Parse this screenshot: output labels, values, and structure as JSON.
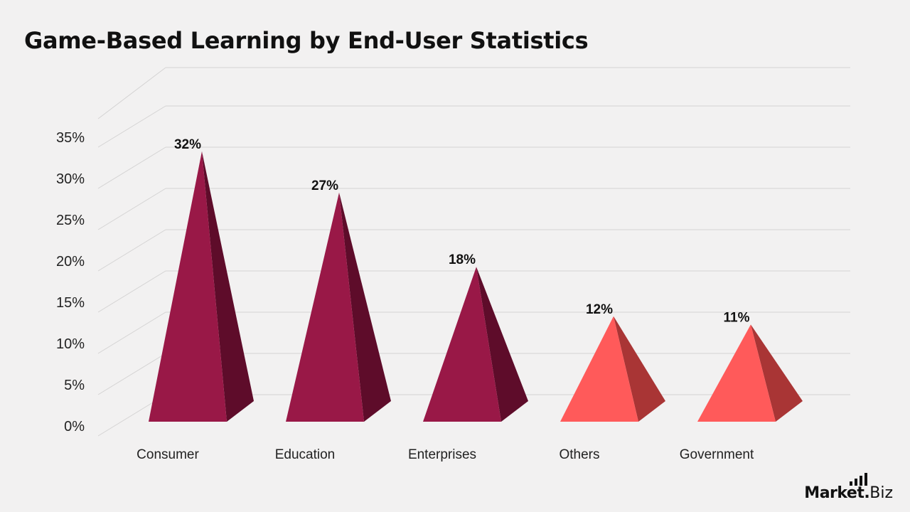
{
  "title": "Game-Based Learning by End-User Statistics",
  "colors": {
    "primary_front": "#991847",
    "primary_side": "#5e0c2a",
    "secondary_front": "#ff5a5a",
    "secondary_side": "#a93535",
    "gridline": "#d4d3d3",
    "background": "#f2f1f1"
  },
  "chart_data": {
    "type": "bar",
    "style": "3d-pyramid",
    "title": "Game-Based Learning by End-User Statistics",
    "categories": [
      "Consumer",
      "Education",
      "Enterprises",
      "Others",
      "Government"
    ],
    "values": [
      32,
      27,
      18,
      12,
      11
    ],
    "value_labels": [
      "32%",
      "27%",
      "18%",
      "12%",
      "11%"
    ],
    "color_groups": [
      "primary",
      "primary",
      "primary",
      "secondary",
      "secondary"
    ],
    "ylim": [
      0,
      35
    ],
    "yticks": [
      0,
      5,
      10,
      15,
      20,
      25,
      30,
      35
    ],
    "ytick_labels": [
      "0%",
      "5%",
      "10%",
      "15%",
      "20%",
      "25%",
      "30%",
      "35%"
    ],
    "grid": true,
    "legend": "none"
  },
  "brand": {
    "logo_main": "Market",
    "logo_dot": ".",
    "logo_suffix": "Biz"
  }
}
